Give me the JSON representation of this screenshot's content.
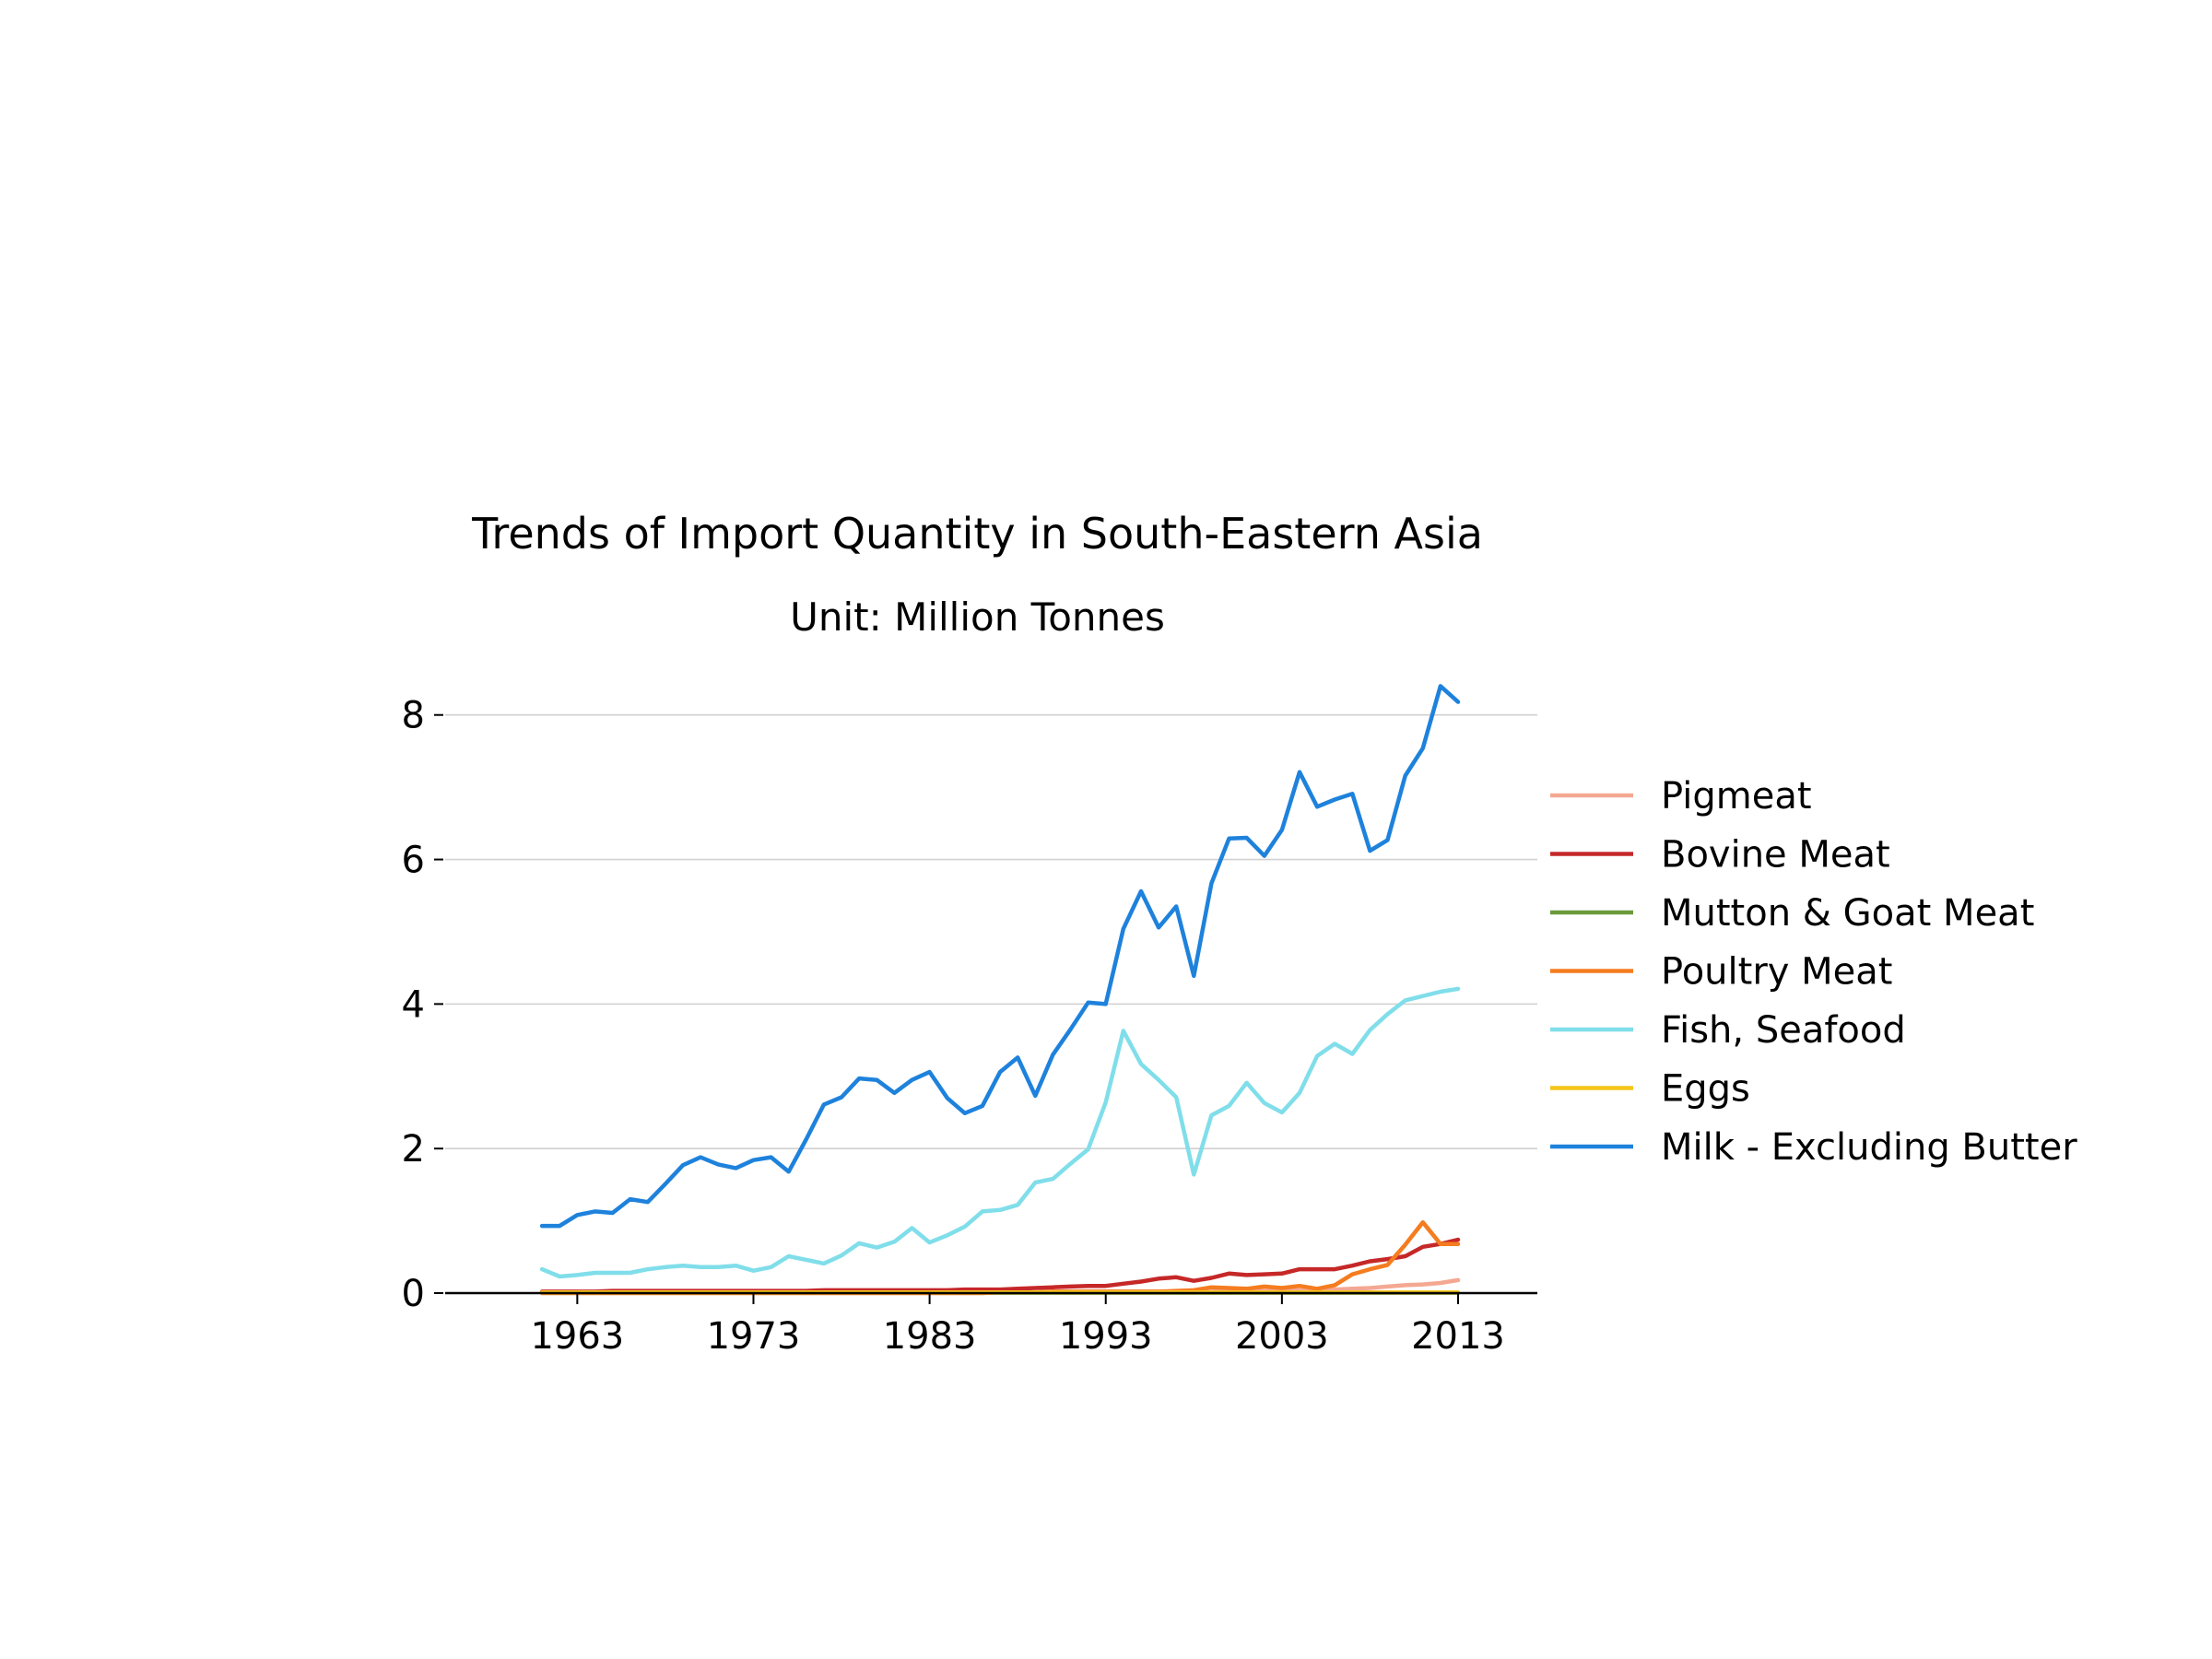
{
  "chart_data": {
    "type": "line",
    "title": "Trends of Import Quantity in South-Eastern Asia",
    "subtitle": "Unit: Million Tonnes",
    "xlabel": "",
    "ylabel": "",
    "xlim": [
      1955.5,
      2017.5
    ],
    "ylim": [
      0,
      8.8
    ],
    "x_ticks": [
      1963,
      1973,
      1983,
      1993,
      2003,
      2013
    ],
    "y_ticks": [
      0,
      2,
      4,
      6,
      8
    ],
    "grid": "horizontal",
    "legend_position": "right",
    "x": [
      1961,
      1962,
      1963,
      1964,
      1965,
      1966,
      1967,
      1968,
      1969,
      1970,
      1971,
      1972,
      1973,
      1974,
      1975,
      1976,
      1977,
      1978,
      1979,
      1980,
      1981,
      1982,
      1983,
      1984,
      1985,
      1986,
      1987,
      1988,
      1989,
      1990,
      1991,
      1992,
      1993,
      1994,
      1995,
      1996,
      1997,
      1998,
      1999,
      2000,
      2001,
      2002,
      2003,
      2004,
      2005,
      2006,
      2007,
      2008,
      2009,
      2010,
      2011,
      2012,
      2013
    ],
    "series": [
      {
        "name": "Pigmeat",
        "color": "#f4a892",
        "values": [
          0.01,
          0.01,
          0.01,
          0.01,
          0.01,
          0.01,
          0.01,
          0.01,
          0.01,
          0.01,
          0.01,
          0.01,
          0.01,
          0.01,
          0.01,
          0.01,
          0.01,
          0.01,
          0.01,
          0.01,
          0.01,
          0.01,
          0.01,
          0.01,
          0.01,
          0.01,
          0.01,
          0.01,
          0.01,
          0.02,
          0.02,
          0.02,
          0.02,
          0.02,
          0.02,
          0.02,
          0.02,
          0.02,
          0.02,
          0.03,
          0.03,
          0.03,
          0.03,
          0.04,
          0.04,
          0.05,
          0.06,
          0.07,
          0.09,
          0.11,
          0.12,
          0.14,
          0.18
        ]
      },
      {
        "name": "Bovine Meat",
        "color": "#c62828",
        "values": [
          0.02,
          0.02,
          0.02,
          0.02,
          0.03,
          0.03,
          0.03,
          0.03,
          0.03,
          0.03,
          0.03,
          0.03,
          0.03,
          0.03,
          0.03,
          0.03,
          0.04,
          0.04,
          0.04,
          0.04,
          0.04,
          0.04,
          0.04,
          0.04,
          0.05,
          0.05,
          0.05,
          0.06,
          0.07,
          0.08,
          0.09,
          0.1,
          0.1,
          0.13,
          0.16,
          0.2,
          0.22,
          0.17,
          0.21,
          0.27,
          0.25,
          0.26,
          0.27,
          0.33,
          0.33,
          0.33,
          0.38,
          0.44,
          0.47,
          0.51,
          0.64,
          0.68,
          0.74
        ]
      },
      {
        "name": "Mutton & Goat Meat",
        "color": "#6a9a3a",
        "values": [
          0.005,
          0.005,
          0.005,
          0.005,
          0.005,
          0.005,
          0.005,
          0.005,
          0.005,
          0.005,
          0.005,
          0.005,
          0.005,
          0.005,
          0.005,
          0.005,
          0.005,
          0.005,
          0.005,
          0.005,
          0.005,
          0.005,
          0.005,
          0.005,
          0.005,
          0.005,
          0.005,
          0.005,
          0.005,
          0.005,
          0.005,
          0.005,
          0.005,
          0.005,
          0.005,
          0.005,
          0.005,
          0.005,
          0.005,
          0.005,
          0.005,
          0.005,
          0.005,
          0.005,
          0.005,
          0.005,
          0.005,
          0.005,
          0.005,
          0.005,
          0.005,
          0.005,
          0.005
        ]
      },
      {
        "name": "Poultry Meat",
        "color": "#f57c1f",
        "values": [
          0.0,
          0.0,
          0.0,
          0.0,
          0.0,
          0.0,
          0.0,
          0.0,
          0.0,
          0.0,
          0.0,
          0.0,
          0.0,
          0.0,
          0.0,
          0.0,
          0.0,
          0.0,
          0.0,
          0.0,
          0.0,
          0.0,
          0.0,
          0.0,
          0.0,
          0.0,
          0.01,
          0.01,
          0.01,
          0.02,
          0.02,
          0.02,
          0.02,
          0.02,
          0.02,
          0.02,
          0.03,
          0.04,
          0.08,
          0.07,
          0.06,
          0.09,
          0.07,
          0.1,
          0.06,
          0.11,
          0.26,
          0.33,
          0.39,
          0.67,
          0.98,
          0.68,
          0.68
        ]
      },
      {
        "name": "Fish, Seafood",
        "color": "#80deea",
        "values": [
          0.33,
          0.23,
          0.25,
          0.28,
          0.28,
          0.28,
          0.33,
          0.36,
          0.38,
          0.36,
          0.36,
          0.38,
          0.31,
          0.36,
          0.51,
          0.46,
          0.41,
          0.52,
          0.69,
          0.63,
          0.71,
          0.9,
          0.7,
          0.8,
          0.92,
          1.13,
          1.15,
          1.22,
          1.53,
          1.58,
          1.79,
          1.99,
          2.64,
          3.63,
          3.17,
          2.95,
          2.71,
          1.64,
          2.46,
          2.59,
          2.91,
          2.63,
          2.5,
          2.77,
          3.28,
          3.45,
          3.31,
          3.64,
          3.86,
          4.05,
          4.11,
          4.17,
          4.21
        ]
      },
      {
        "name": "Eggs",
        "color": "#f5c518",
        "values": [
          0.01,
          0.01,
          0.01,
          0.01,
          0.01,
          0.01,
          0.01,
          0.01,
          0.01,
          0.01,
          0.01,
          0.01,
          0.01,
          0.01,
          0.01,
          0.01,
          0.01,
          0.01,
          0.01,
          0.01,
          0.01,
          0.01,
          0.01,
          0.01,
          0.01,
          0.01,
          0.01,
          0.01,
          0.01,
          0.01,
          0.01,
          0.01,
          0.01,
          0.01,
          0.01,
          0.01,
          0.01,
          0.01,
          0.01,
          0.01,
          0.01,
          0.01,
          0.01,
          0.01,
          0.01,
          0.01,
          0.01,
          0.01,
          0.01,
          0.01,
          0.01,
          0.01,
          0.01
        ]
      },
      {
        "name": "Milk - Excluding Butter",
        "color": "#1e82dc",
        "values": [
          0.93,
          0.93,
          1.08,
          1.13,
          1.11,
          1.3,
          1.26,
          1.51,
          1.77,
          1.88,
          1.78,
          1.73,
          1.84,
          1.88,
          1.68,
          2.13,
          2.61,
          2.71,
          2.97,
          2.95,
          2.77,
          2.95,
          3.06,
          2.7,
          2.49,
          2.59,
          3.06,
          3.26,
          2.73,
          3.3,
          3.65,
          4.02,
          4.0,
          5.04,
          5.56,
          5.06,
          5.35,
          4.39,
          5.67,
          6.29,
          6.3,
          6.05,
          6.41,
          7.21,
          6.73,
          6.83,
          6.91,
          6.12,
          6.27,
          7.16,
          7.54,
          8.4,
          8.18
        ]
      }
    ]
  }
}
